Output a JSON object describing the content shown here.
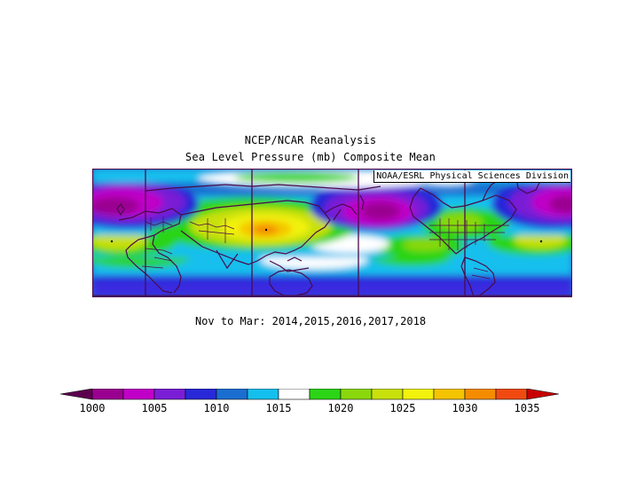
{
  "header": {
    "line1": "NCEP/NCAR Reanalysis",
    "line2": "Sea Level Pressure (mb) Composite Mean"
  },
  "map": {
    "credit": "NOAA/ESRL Physical Sciences Division"
  },
  "period_label": "Nov to Mar: 2014,2015,2016,2017,2018",
  "colorbar": {
    "labels": [
      "1000",
      "1005",
      "1010",
      "1015",
      "1020",
      "1025",
      "1030",
      "1035"
    ],
    "colors": [
      "#5c004e",
      "#9a0090",
      "#c000c8",
      "#7a1ed6",
      "#2828d8",
      "#1a6ed0",
      "#14bfee",
      "#ffffff",
      "#2cd416",
      "#8ad80c",
      "#c8e00c",
      "#f2f20c",
      "#f5c400",
      "#f58c00",
      "#f04a10",
      "#c80000"
    ]
  },
  "colors": {
    "line": "#4a0a4a"
  }
}
